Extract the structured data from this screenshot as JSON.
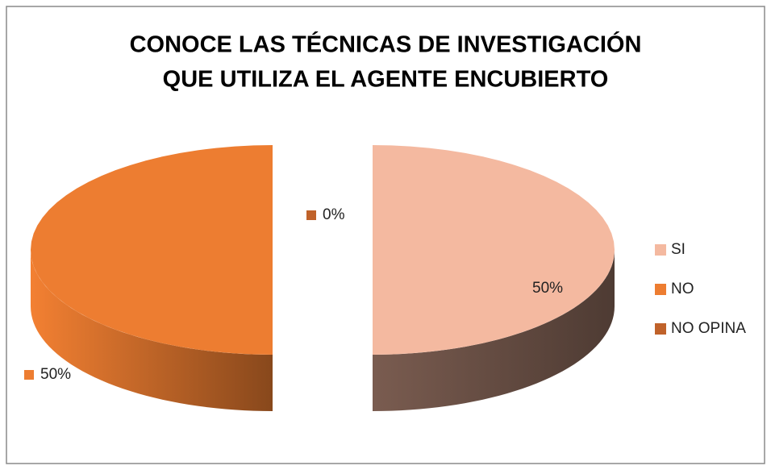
{
  "chart_data": {
    "type": "pie3d",
    "title": [
      "CONOCE LAS TÉCNICAS DE INVESTIGACIÓN",
      "QUE UTILIZA EL AGENTE ENCUBIERTO"
    ],
    "categories": [
      "SI",
      "NO",
      "NO OPINA"
    ],
    "values": [
      50,
      50,
      0
    ],
    "value_labels": [
      "50%",
      "50%",
      "0%"
    ],
    "colors": [
      "#f4b9a0",
      "#ed7d31",
      "#c0622a"
    ],
    "legend": "right"
  }
}
